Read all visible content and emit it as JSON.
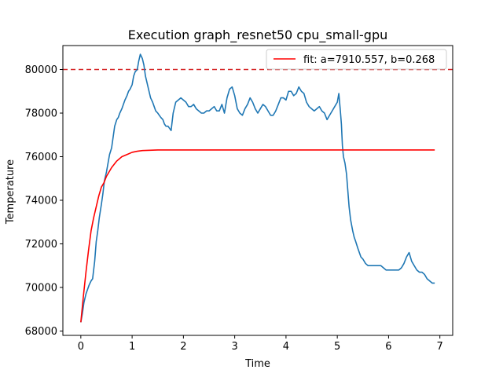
{
  "chart_data": {
    "type": "line",
    "title": "Execution graph_resnet50 cpu_small-gpu",
    "xlabel": "Time",
    "ylabel": "Temperature",
    "xlim": [
      -0.35,
      7.25
    ],
    "ylim": [
      67800,
      81100
    ],
    "xticks": [
      0,
      1,
      2,
      3,
      4,
      5,
      6,
      7
    ],
    "yticks": [
      68000,
      70000,
      72000,
      74000,
      76000,
      78000,
      80000
    ],
    "grid": false,
    "legend_position": "top-right",
    "threshold": {
      "y": 80000,
      "color": "#d62728",
      "style": "dashed"
    },
    "series": [
      {
        "name": "",
        "color": "#1f77b4",
        "x": [
          0,
          0.03,
          0.06,
          0.1,
          0.13,
          0.16,
          0.2,
          0.23,
          0.27,
          0.3,
          0.33,
          0.36,
          0.4,
          0.43,
          0.46,
          0.5,
          0.53,
          0.56,
          0.6,
          0.63,
          0.66,
          0.7,
          0.73,
          0.76,
          0.8,
          0.83,
          0.86,
          0.9,
          0.93,
          0.96,
          1.0,
          1.03,
          1.06,
          1.1,
          1.13,
          1.16,
          1.2,
          1.23,
          1.26,
          1.3,
          1.33,
          1.36,
          1.4,
          1.43,
          1.46,
          1.5,
          1.53,
          1.56,
          1.6,
          1.63,
          1.66,
          1.7,
          1.73,
          1.76,
          1.8,
          1.85,
          1.9,
          1.95,
          2.0,
          2.05,
          2.1,
          2.15,
          2.2,
          2.25,
          2.3,
          2.35,
          2.4,
          2.45,
          2.5,
          2.55,
          2.6,
          2.65,
          2.7,
          2.75,
          2.8,
          2.85,
          2.9,
          2.95,
          3.0,
          3.05,
          3.1,
          3.15,
          3.2,
          3.25,
          3.3,
          3.35,
          3.4,
          3.45,
          3.5,
          3.55,
          3.6,
          3.65,
          3.7,
          3.75,
          3.8,
          3.85,
          3.9,
          3.95,
          4.0,
          4.05,
          4.1,
          4.15,
          4.2,
          4.25,
          4.3,
          4.35,
          4.4,
          4.45,
          4.5,
          4.55,
          4.6,
          4.65,
          4.7,
          4.75,
          4.8,
          4.85,
          4.9,
          4.95,
          5.0,
          5.03,
          5.06,
          5.08,
          5.1,
          5.12,
          5.15,
          5.18,
          5.2,
          5.23,
          5.26,
          5.3,
          5.33,
          5.36,
          5.4,
          5.43,
          5.46,
          5.5,
          5.55,
          5.6,
          5.65,
          5.7,
          5.75,
          5.8,
          5.85,
          5.9,
          5.95,
          6.0,
          6.05,
          6.1,
          6.15,
          6.2,
          6.25,
          6.3,
          6.35,
          6.4,
          6.45,
          6.5,
          6.55,
          6.6,
          6.65,
          6.7,
          6.75,
          6.8,
          6.85,
          6.9
        ],
        "y": [
          68400,
          68800,
          69300,
          69700,
          69900,
          70100,
          70300,
          70400,
          71200,
          72100,
          72600,
          73200,
          73800,
          74300,
          74900,
          75300,
          75700,
          76100,
          76400,
          76900,
          77400,
          77700,
          77800,
          78000,
          78200,
          78400,
          78600,
          78800,
          79000,
          79100,
          79300,
          79700,
          79900,
          80000,
          80400,
          80700,
          80500,
          80200,
          79700,
          79300,
          79000,
          78700,
          78500,
          78300,
          78100,
          78000,
          77900,
          77800,
          77700,
          77500,
          77400,
          77400,
          77300,
          77200,
          78000,
          78500,
          78600,
          78700,
          78600,
          78500,
          78300,
          78300,
          78400,
          78200,
          78100,
          78000,
          78000,
          78100,
          78100,
          78200,
          78300,
          78100,
          78100,
          78400,
          78000,
          78700,
          79100,
          79200,
          78800,
          78200,
          78000,
          77900,
          78200,
          78400,
          78700,
          78500,
          78200,
          78000,
          78200,
          78400,
          78300,
          78100,
          77900,
          77900,
          78100,
          78400,
          78700,
          78700,
          78600,
          79000,
          79000,
          78800,
          78900,
          79200,
          79000,
          78900,
          78500,
          78300,
          78200,
          78100,
          78200,
          78300,
          78100,
          78000,
          77700,
          77900,
          78100,
          78300,
          78500,
          78900,
          78100,
          77500,
          76500,
          76000,
          75700,
          75200,
          74600,
          73700,
          73100,
          72600,
          72300,
          72100,
          71800,
          71600,
          71400,
          71300,
          71100,
          71000,
          71000,
          71000,
          71000,
          71000,
          71000,
          70900,
          70800,
          70800,
          70800,
          70800,
          70800,
          70800,
          70900,
          71100,
          71400,
          71600,
          71200,
          71000,
          70800,
          70700,
          70700,
          70600,
          70400,
          70300,
          70200,
          70200
        ]
      },
      {
        "name": "fit: a=7910.557, b=0.268",
        "color": "#ff0000",
        "model": "exponential approach",
        "x": [
          0,
          0.05,
          0.1,
          0.15,
          0.2,
          0.25,
          0.3,
          0.35,
          0.4,
          0.45,
          0.5,
          0.6,
          0.7,
          0.8,
          0.9,
          1.0,
          1.1,
          1.2,
          1.3,
          1.4,
          1.5,
          1.6,
          1.8,
          2.0,
          2.5,
          3.0,
          3.5,
          4.0,
          4.5,
          5.0,
          5.5,
          6.0,
          6.5,
          6.9
        ],
        "y": [
          68400,
          69600,
          70700,
          71700,
          72600,
          73200,
          73700,
          74200,
          74600,
          74800,
          75100,
          75500,
          75800,
          76000,
          76100,
          76200,
          76250,
          76280,
          76290,
          76300,
          76310,
          76310,
          76310,
          76310,
          76310,
          76310,
          76310,
          76310,
          76310,
          76310,
          76310,
          76310,
          76310,
          76310
        ]
      }
    ]
  }
}
